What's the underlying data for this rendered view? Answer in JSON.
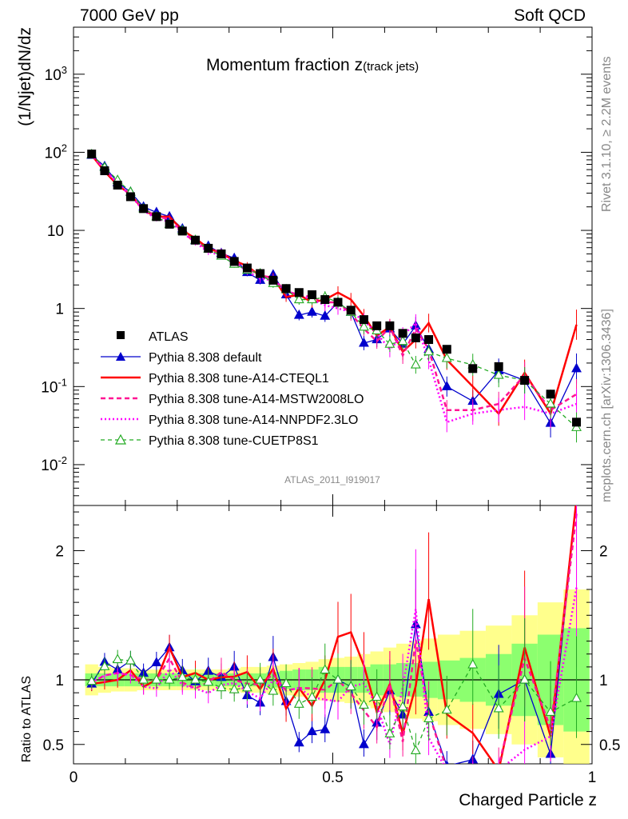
{
  "header": {
    "left": "7000 GeV pp",
    "right": "Soft QCD",
    "title": "Momentum fraction ",
    "title_var": "z",
    "title_sub": "(track jets)",
    "side_top": "Rivet 3.1.10, ≥ 2.2M events",
    "side_bottom": "mcplots.cern.ch [arXiv:1306.3436]",
    "watermark": "ATLAS_2011_I919017"
  },
  "chart_data": {
    "type": "scatter",
    "title": "Momentum fraction z(track jets)",
    "xlabel": "Charged Particle z",
    "ylabel": "(1/Njet)dN/dz",
    "ratio_ylabel": "Ratio to ATLAS",
    "xlim": [
      0,
      1
    ],
    "ylim": [
      0.003,
      4000
    ],
    "ratio_ylim": [
      0.35,
      2.35
    ],
    "yscale": "log",
    "x_ticks": [
      "0",
      "0.5",
      "1"
    ],
    "y_ticks": [
      {
        "base": "10",
        "exp": "-2",
        "v": 0.01
      },
      {
        "base": "10",
        "exp": "-1",
        "v": 0.1
      },
      {
        "base": "1",
        "exp": "",
        "v": 1
      },
      {
        "base": "10",
        "exp": "",
        "v": 10
      },
      {
        "base": "10",
        "exp": "2",
        "v": 100
      },
      {
        "base": "10",
        "exp": "3",
        "v": 1000
      }
    ],
    "ratio_ticks": [
      "0.5",
      "1",
      "2"
    ],
    "legend_position": "lower-left",
    "x": [
      0.035,
      0.06,
      0.085,
      0.11,
      0.135,
      0.16,
      0.185,
      0.21,
      0.235,
      0.26,
      0.285,
      0.31,
      0.335,
      0.36,
      0.385,
      0.41,
      0.435,
      0.46,
      0.485,
      0.51,
      0.535,
      0.56,
      0.585,
      0.61,
      0.635,
      0.66,
      0.685,
      0.72,
      0.77,
      0.82,
      0.87,
      0.92,
      0.97
    ],
    "series": [
      {
        "name": "ATLAS",
        "color": "#000000",
        "style": "data",
        "values": [
          95,
          58,
          38,
          27,
          19,
          15,
          12,
          9.8,
          7.5,
          5.9,
          5.0,
          4.0,
          3.3,
          2.8,
          2.3,
          1.8,
          1.6,
          1.5,
          1.3,
          1.2,
          0.95,
          0.72,
          0.6,
          0.6,
          0.48,
          0.42,
          0.4,
          0.3,
          0.17,
          0.18,
          0.12,
          0.08,
          0.035
        ]
      },
      {
        "name": "Pythia 8.308 default",
        "color": "#0000cc",
        "style": "solid",
        "marker": "triangle",
        "values": [
          92,
          66,
          41,
          31,
          20,
          17,
          15,
          10.5,
          7.4,
          6.3,
          5.1,
          4.4,
          2.9,
          2.3,
          2.7,
          1.5,
          0.82,
          0.9,
          0.8,
          1.2,
          0.9,
          0.36,
          0.4,
          0.55,
          0.35,
          0.6,
          0.3,
          0.1,
          0.065,
          0.16,
          0.12,
          0.034,
          0.17
        ]
      },
      {
        "name": "Pythia 8.308 tune-A14-CTEQL1",
        "color": "#ff0000",
        "style": "solid",
        "values": [
          92,
          57,
          38,
          29,
          18,
          15,
          15,
          10,
          7.9,
          5.9,
          5.1,
          4.1,
          3.5,
          2.6,
          2.5,
          1.4,
          1.5,
          1.2,
          1.3,
          1.6,
          1.3,
          0.8,
          0.45,
          0.58,
          0.28,
          0.4,
          0.65,
          0.22,
          0.1,
          0.045,
          0.15,
          0.045,
          0.62
        ]
      },
      {
        "name": "Pythia 8.308 tune-A14-MSTW2008LO",
        "color": "#ff1493",
        "style": "dashed",
        "values": [
          93,
          60,
          40,
          28,
          19,
          15,
          14,
          9.6,
          7.0,
          5.8,
          5.3,
          4.0,
          3.2,
          2.7,
          2.4,
          1.65,
          1.5,
          1.4,
          1.2,
          1.2,
          0.85,
          0.55,
          0.38,
          0.58,
          0.25,
          0.55,
          0.3,
          0.05,
          0.05,
          0.06,
          0.14,
          0.05,
          0.08
        ]
      },
      {
        "name": "Pythia 8.308 tune-A14-NNPDF2.3LO",
        "color": "#ff00ff",
        "style": "dotted",
        "values": [
          93,
          60,
          40,
          28,
          18,
          14,
          13,
          9.4,
          7.0,
          5.3,
          4.8,
          3.9,
          3.0,
          2.4,
          2.3,
          1.65,
          1.5,
          1.3,
          1.1,
          1.0,
          0.9,
          0.7,
          0.48,
          0.3,
          0.45,
          0.65,
          0.22,
          0.035,
          0.045,
          0.05,
          0.055,
          0.045,
          0.06
        ]
      },
      {
        "name": "Pythia 8.308 tune-CUETP8S1",
        "color": "#22aa22",
        "style": "dashed",
        "marker": "open-triangle",
        "values": [
          94,
          64,
          44,
          31,
          19,
          15,
          12,
          10,
          7.5,
          5.8,
          4.7,
          3.7,
          3.1,
          2.8,
          2.1,
          1.75,
          1.3,
          1.3,
          1.4,
          1.2,
          0.9,
          0.58,
          0.52,
          0.35,
          0.38,
          0.19,
          0.28,
          0.23,
          0.19,
          0.14,
          0.12,
          0.06,
          0.03
        ]
      }
    ],
    "bands": {
      "green_halfwidth": [
        0.05,
        0.05,
        0.05,
        0.05,
        0.05,
        0.05,
        0.05,
        0.05,
        0.05,
        0.05,
        0.05,
        0.05,
        0.05,
        0.05,
        0.06,
        0.07,
        0.08,
        0.08,
        0.1,
        0.1,
        0.1,
        0.1,
        0.12,
        0.12,
        0.13,
        0.13,
        0.14,
        0.15,
        0.17,
        0.2,
        0.28,
        0.35,
        0.4
      ],
      "yellow_halfwidth": [
        0.12,
        0.1,
        0.09,
        0.09,
        0.08,
        0.08,
        0.08,
        0.08,
        0.08,
        0.08,
        0.08,
        0.09,
        0.1,
        0.1,
        0.11,
        0.12,
        0.13,
        0.14,
        0.16,
        0.17,
        0.18,
        0.2,
        0.22,
        0.25,
        0.28,
        0.3,
        0.32,
        0.35,
        0.38,
        0.42,
        0.5,
        0.6,
        0.7
      ]
    }
  },
  "legend": [
    {
      "label": "ATLAS",
      "key": "atlas"
    },
    {
      "label": "Pythia 8.308 default",
      "key": "default"
    },
    {
      "label": "Pythia 8.308 tune-A14-CTEQL1",
      "key": "cteql1"
    },
    {
      "label": "Pythia 8.308 tune-A14-MSTW2008LO",
      "key": "mstw"
    },
    {
      "label": "Pythia 8.308 tune-A14-NNPDF2.3LO",
      "key": "nnpdf"
    },
    {
      "label": "Pythia 8.308 tune-CUETP8S1",
      "key": "cuetp"
    }
  ]
}
